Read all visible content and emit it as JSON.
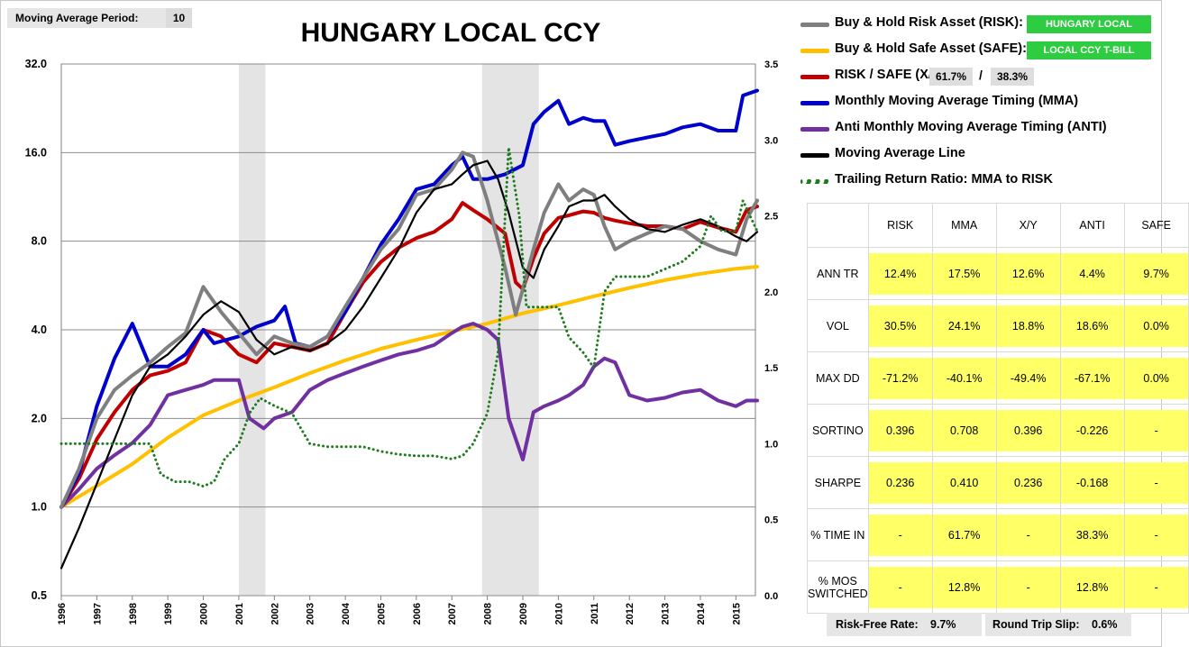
{
  "ma_period": {
    "label": "Moving Average Period:",
    "value": "10"
  },
  "title": "HUNGARY LOCAL CCY",
  "legend": [
    {
      "text": "Buy & Hold Risk Asset (RISK):",
      "color": "#7f7f7f",
      "style": "line"
    },
    {
      "text": "Buy & Hold Safe Asset (SAFE):",
      "color": "#ffc000",
      "style": "line"
    },
    {
      "text": "RISK / SAFE (X/Y):",
      "color": "#c00000",
      "style": "line"
    },
    {
      "text": "Monthly Moving Average Timing (MMA)",
      "color": "#0000cc",
      "style": "line"
    },
    {
      "text": "Anti Monthly Moving Average Timing (ANTI)",
      "color": "#7030a0",
      "style": "line"
    },
    {
      "text": "Moving Average Line",
      "color": "#000000",
      "style": "line"
    },
    {
      "text": "Trailing Return Ratio: MMA to RISK",
      "color": "#1e7b1e",
      "style": "dots"
    }
  ],
  "tags": {
    "risk_asset": "HUNGARY LOCAL",
    "safe_asset": "LOCAL CCY T-BILL",
    "xy_risk": "61.7%",
    "xy_sep": "/",
    "xy_safe": "38.3%"
  },
  "stats": {
    "columns": [
      "RISK",
      "MMA",
      "X/Y",
      "ANTI",
      "SAFE"
    ],
    "rows": [
      {
        "label": "ANN TR",
        "values": [
          "12.4%",
          "17.5%",
          "12.6%",
          "4.4%",
          "9.7%"
        ]
      },
      {
        "label": "VOL",
        "values": [
          "30.5%",
          "24.1%",
          "18.8%",
          "18.6%",
          "0.0%"
        ]
      },
      {
        "label": "MAX DD",
        "values": [
          "-71.2%",
          "-40.1%",
          "-49.4%",
          "-67.1%",
          "0.0%"
        ]
      },
      {
        "label": "SORTINO",
        "values": [
          "0.396",
          "0.708",
          "0.396",
          "-0.226",
          "-"
        ]
      },
      {
        "label": "SHARPE",
        "values": [
          "0.236",
          "0.410",
          "0.236",
          "-0.168",
          "-"
        ]
      },
      {
        "label": "% TIME IN",
        "values": [
          "-",
          "61.7%",
          "-",
          "38.3%",
          "-"
        ]
      },
      {
        "label": "% MOS SWITCHED",
        "values": [
          "-",
          "12.8%",
          "-",
          "12.8%",
          "-"
        ]
      }
    ]
  },
  "footer": {
    "rf_label": "Risk-Free Rate:",
    "rf_value": "9.7%",
    "slip_label": "Round Trip Slip:",
    "slip_value": "0.6%"
  },
  "chart_data": {
    "type": "line",
    "title": "HUNGARY LOCAL CCY",
    "x_ticks": [
      "1996",
      "1997",
      "1998",
      "1999",
      "2000",
      "2001",
      "2002",
      "2003",
      "2004",
      "2005",
      "2006",
      "2007",
      "2008",
      "2009",
      "2010",
      "2011",
      "2012",
      "2013",
      "2014",
      "2015"
    ],
    "y_left": {
      "scale": "log2",
      "range": [
        0.5,
        32
      ],
      "ticks": [
        "0.5",
        "1.0",
        "2.0",
        "4.0",
        "8.0",
        "16.0",
        "32.0"
      ]
    },
    "y_right": {
      "scale": "linear",
      "range": [
        0.0,
        3.5
      ],
      "ticks": [
        "0.0",
        "0.5",
        "1.0",
        "1.5",
        "2.0",
        "2.5",
        "3.0",
        "3.5"
      ]
    },
    "shaded_periods": [
      [
        2001.0,
        2001.75
      ],
      [
        2007.85,
        2009.45
      ]
    ],
    "grid": "horizontal",
    "series": [
      {
        "name": "Buy & Hold Safe Asset (SAFE)",
        "axis": "left",
        "color": "#ffc000",
        "x": [
          1996,
          1997,
          1998,
          1999,
          2000,
          2001,
          2002,
          2003,
          2004,
          2005,
          2006,
          2007,
          2008,
          2009,
          2010,
          2011,
          2012,
          2013,
          2014,
          2015,
          2015.6
        ],
        "y": [
          1.0,
          1.18,
          1.4,
          1.72,
          2.05,
          2.3,
          2.55,
          2.85,
          3.15,
          3.45,
          3.7,
          3.95,
          4.2,
          4.55,
          4.85,
          5.2,
          5.55,
          5.9,
          6.2,
          6.45,
          6.55
        ]
      },
      {
        "name": "Buy & Hold Risk Asset (RISK)",
        "axis": "left",
        "color": "#7f7f7f",
        "x": [
          1996,
          1996.5,
          1997,
          1997.5,
          1998,
          1998.5,
          1999,
          1999.5,
          2000,
          2000.5,
          2001,
          2001.5,
          2002,
          2002.5,
          2003,
          2003.5,
          2004,
          2004.5,
          2005,
          2005.5,
          2006,
          2006.5,
          2007,
          2007.3,
          2007.6,
          2008,
          2008.5,
          2008.8,
          2009,
          2009.3,
          2009.6,
          2010,
          2010.3,
          2010.7,
          2011,
          2011.3,
          2011.6,
          2012,
          2012.5,
          2013,
          2013.5,
          2014,
          2014.5,
          2015,
          2015.3,
          2015.6
        ],
        "y": [
          1.0,
          1.35,
          2.0,
          2.5,
          2.8,
          3.1,
          3.5,
          3.9,
          5.6,
          4.6,
          3.9,
          3.3,
          3.8,
          3.6,
          3.5,
          3.8,
          4.8,
          6.0,
          7.5,
          8.8,
          11.5,
          12.0,
          14.0,
          16.0,
          15.5,
          11.0,
          6.5,
          4.5,
          5.5,
          7.5,
          10.0,
          12.5,
          11.0,
          12.0,
          11.5,
          9.0,
          7.5,
          8.0,
          8.5,
          9.0,
          8.8,
          8.0,
          7.5,
          7.2,
          9.5,
          11.0
        ]
      },
      {
        "name": "RISK / SAFE (X/Y)",
        "axis": "left",
        "color": "#c00000",
        "x": [
          1996,
          1996.5,
          1997,
          1997.5,
          1998,
          1998.5,
          1999,
          1999.5,
          2000,
          2000.5,
          2001,
          2001.5,
          2002,
          2002.5,
          2003,
          2003.5,
          2004,
          2004.5,
          2005,
          2005.5,
          2006,
          2006.5,
          2007,
          2007.3,
          2007.6,
          2008,
          2008.5,
          2008.8,
          2009,
          2009.3,
          2009.6,
          2010,
          2010.3,
          2010.7,
          2011,
          2011.3,
          2011.6,
          2012,
          2012.5,
          2013,
          2013.5,
          2014,
          2014.5,
          2015,
          2015.3,
          2015.6
        ],
        "y": [
          1.0,
          1.25,
          1.7,
          2.1,
          2.5,
          2.8,
          2.9,
          3.1,
          4.0,
          3.8,
          3.3,
          3.1,
          3.6,
          3.5,
          3.4,
          3.6,
          4.6,
          5.8,
          6.8,
          7.6,
          8.2,
          8.6,
          9.5,
          10.8,
          10.2,
          9.5,
          8.5,
          5.8,
          5.5,
          7.0,
          8.5,
          9.6,
          9.8,
          10.1,
          10.0,
          9.6,
          9.4,
          9.2,
          9.0,
          9.0,
          8.8,
          9.3,
          8.9,
          8.6,
          10.2,
          10.5
        ]
      },
      {
        "name": "Monthly Moving Average Timing (MMA)",
        "axis": "left",
        "color": "#0000cc",
        "x": [
          1996,
          1996.5,
          1997,
          1997.5,
          1998,
          1998.5,
          1999,
          1999.5,
          2000,
          2000.3,
          2001,
          2001.5,
          2002,
          2002.3,
          2002.6,
          2003,
          2003.5,
          2004,
          2004.5,
          2005,
          2005.5,
          2006,
          2006.5,
          2007,
          2007.3,
          2007.6,
          2008,
          2008.5,
          2009,
          2009.3,
          2009.6,
          2010,
          2010.3,
          2010.7,
          2011,
          2011.3,
          2011.6,
          2012,
          2012.5,
          2013,
          2013.5,
          2014,
          2014.5,
          2015,
          2015.2,
          2015.6
        ],
        "y": [
          1.0,
          1.3,
          2.2,
          3.2,
          4.2,
          3.0,
          3.0,
          3.3,
          4.0,
          3.6,
          3.8,
          4.1,
          4.3,
          4.8,
          3.6,
          3.5,
          3.8,
          4.6,
          6.0,
          7.8,
          9.5,
          12.0,
          12.5,
          14.5,
          15.5,
          13.0,
          13.0,
          13.5,
          14.5,
          20.0,
          22.0,
          24.0,
          20.0,
          21.0,
          20.5,
          20.5,
          17.0,
          17.5,
          18.0,
          18.5,
          19.5,
          20.0,
          19.0,
          19.0,
          25.0,
          26.0
        ]
      },
      {
        "name": "Anti Monthly Moving Average Timing (ANTI)",
        "axis": "left",
        "color": "#7030a0",
        "x": [
          1996,
          1996.5,
          1997,
          1997.5,
          1998,
          1998.5,
          1999,
          1999.5,
          2000,
          2000.3,
          2001,
          2001.3,
          2001.7,
          2002,
          2002.5,
          2003,
          2003.5,
          2004,
          2004.5,
          2005,
          2005.5,
          2006,
          2006.5,
          2007,
          2007.3,
          2007.6,
          2008,
          2008.3,
          2008.6,
          2009,
          2009.3,
          2009.6,
          2010,
          2010.3,
          2010.7,
          2011,
          2011.3,
          2011.6,
          2012,
          2012.5,
          2013,
          2013.5,
          2014,
          2014.5,
          2015,
          2015.3,
          2015.6
        ],
        "y": [
          1.0,
          1.15,
          1.35,
          1.5,
          1.65,
          1.9,
          2.4,
          2.5,
          2.6,
          2.7,
          2.7,
          2.0,
          1.85,
          2.0,
          2.1,
          2.5,
          2.7,
          2.85,
          3.0,
          3.15,
          3.3,
          3.4,
          3.55,
          3.9,
          4.1,
          4.2,
          4.0,
          3.7,
          2.0,
          1.45,
          2.1,
          2.2,
          2.3,
          2.4,
          2.6,
          3.0,
          3.2,
          3.1,
          2.4,
          2.3,
          2.35,
          2.45,
          2.5,
          2.3,
          2.2,
          2.3,
          2.3
        ]
      },
      {
        "name": "Moving Average Line",
        "axis": "left",
        "color": "#000000",
        "x": [
          1996,
          1996.5,
          1997,
          1997.5,
          1998,
          1998.5,
          1999,
          1999.5,
          2000,
          2000.5,
          2001,
          2001.5,
          2002,
          2002.5,
          2003,
          2003.5,
          2004,
          2004.5,
          2005,
          2005.5,
          2006,
          2006.5,
          2007,
          2007.3,
          2007.6,
          2008,
          2008.3,
          2008.6,
          2009,
          2009.3,
          2009.6,
          2010,
          2010.3,
          2010.7,
          2011,
          2011.3,
          2011.6,
          2012,
          2012.5,
          2013,
          2013.5,
          2014,
          2014.5,
          2015,
          2015.3,
          2015.6
        ],
        "y": [
          0.62,
          0.85,
          1.2,
          1.7,
          2.4,
          3.0,
          3.3,
          3.8,
          4.5,
          5.0,
          4.6,
          3.7,
          3.3,
          3.5,
          3.4,
          3.6,
          4.0,
          4.8,
          6.0,
          7.5,
          10.0,
          12.0,
          12.5,
          13.5,
          14.5,
          15.0,
          13.0,
          10.0,
          6.5,
          6.0,
          7.5,
          9.0,
          10.5,
          11.0,
          11.0,
          11.5,
          10.5,
          9.5,
          8.8,
          8.6,
          9.1,
          9.5,
          9.0,
          8.3,
          8.0,
          8.6
        ]
      },
      {
        "name": "Trailing Return Ratio: MMA to RISK",
        "axis": "right",
        "color": "#1e7b1e",
        "style": "dotted",
        "x": [
          1996,
          1996.5,
          1997,
          1997.5,
          1998,
          1998.5,
          1998.8,
          1999.2,
          1999.6,
          2000,
          2000.3,
          2000.6,
          2001,
          2001.3,
          2001.6,
          2002,
          2002.5,
          2003,
          2003.5,
          2004,
          2004.5,
          2005,
          2005.5,
          2006,
          2006.5,
          2007,
          2007.3,
          2007.6,
          2008,
          2008.3,
          2008.6,
          2008.9,
          2009.1,
          2009.3,
          2009.6,
          2010,
          2010.3,
          2010.7,
          2011,
          2011.3,
          2011.6,
          2012,
          2012.5,
          2013,
          2013.5,
          2014,
          2014.3,
          2014.6,
          2015,
          2015.2,
          2015.6
        ],
        "y": [
          1.0,
          1.0,
          1.0,
          1.0,
          1.0,
          1.0,
          0.8,
          0.75,
          0.75,
          0.72,
          0.75,
          0.9,
          1.0,
          1.2,
          1.3,
          1.25,
          1.2,
          1.0,
          0.98,
          0.98,
          0.98,
          0.95,
          0.93,
          0.92,
          0.92,
          0.9,
          0.92,
          1.0,
          1.2,
          1.6,
          2.95,
          2.5,
          1.9,
          1.9,
          1.9,
          1.9,
          1.7,
          1.6,
          1.5,
          2.0,
          2.1,
          2.1,
          2.1,
          2.15,
          2.2,
          2.3,
          2.5,
          2.4,
          2.4,
          2.6,
          2.4
        ]
      }
    ]
  }
}
